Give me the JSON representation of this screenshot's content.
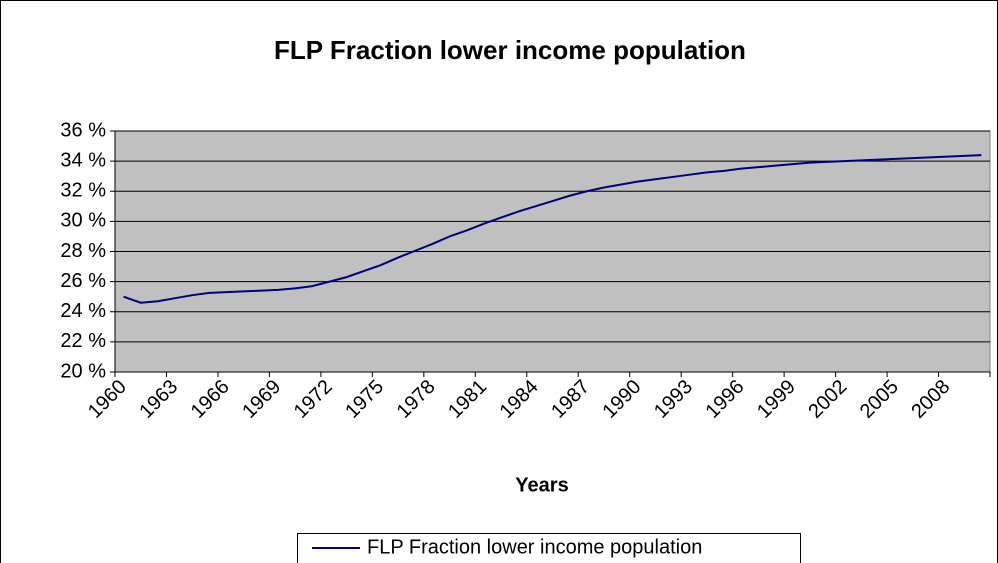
{
  "chart_data": {
    "type": "line",
    "title": "FLP Fraction lower income population",
    "xlabel": "Years",
    "categories": [
      "1960",
      null,
      null,
      "1963",
      null,
      null,
      "1966",
      null,
      null,
      "1969",
      null,
      null,
      "1972",
      null,
      null,
      "1975",
      null,
      null,
      "1978",
      null,
      null,
      "1981",
      null,
      null,
      "1984",
      null,
      null,
      "1987",
      null,
      null,
      "1990",
      null,
      null,
      "1993",
      null,
      null,
      "1996",
      null,
      null,
      "1999",
      null,
      null,
      "2002",
      null,
      null,
      "2005",
      null,
      null,
      "2008",
      null,
      null
    ],
    "series": [
      {
        "name": "FLP Fraction lower income population",
        "color": "#000080",
        "values": [
          25.0,
          24.6,
          24.7,
          24.9,
          25.1,
          25.25,
          25.3,
          25.35,
          25.4,
          25.45,
          25.55,
          25.7,
          26.0,
          26.3,
          26.7,
          27.1,
          27.6,
          28.05,
          28.5,
          29.0,
          29.4,
          29.85,
          30.25,
          30.65,
          31.0,
          31.35,
          31.7,
          32.0,
          32.25,
          32.45,
          32.65,
          32.8,
          32.95,
          33.1,
          33.25,
          33.35,
          33.5,
          33.6,
          33.7,
          33.8,
          33.9,
          33.95,
          34.0,
          34.05,
          34.1,
          34.15,
          34.2,
          34.25,
          34.3,
          34.35,
          34.4
        ]
      }
    ],
    "ylim": [
      20,
      36
    ],
    "yticks": [
      {
        "value": 20,
        "label": "20 %"
      },
      {
        "value": 22,
        "label": "22 %"
      },
      {
        "value": 24,
        "label": "24 %"
      },
      {
        "value": 26,
        "label": "26 %"
      },
      {
        "value": 28,
        "label": "28 %"
      },
      {
        "value": 30,
        "label": "30 %"
      },
      {
        "value": 32,
        "label": "32 %"
      },
      {
        "value": 34,
        "label": "34 %"
      },
      {
        "value": 36,
        "label": "36 %"
      }
    ],
    "grid": true,
    "legend": "bottom"
  }
}
